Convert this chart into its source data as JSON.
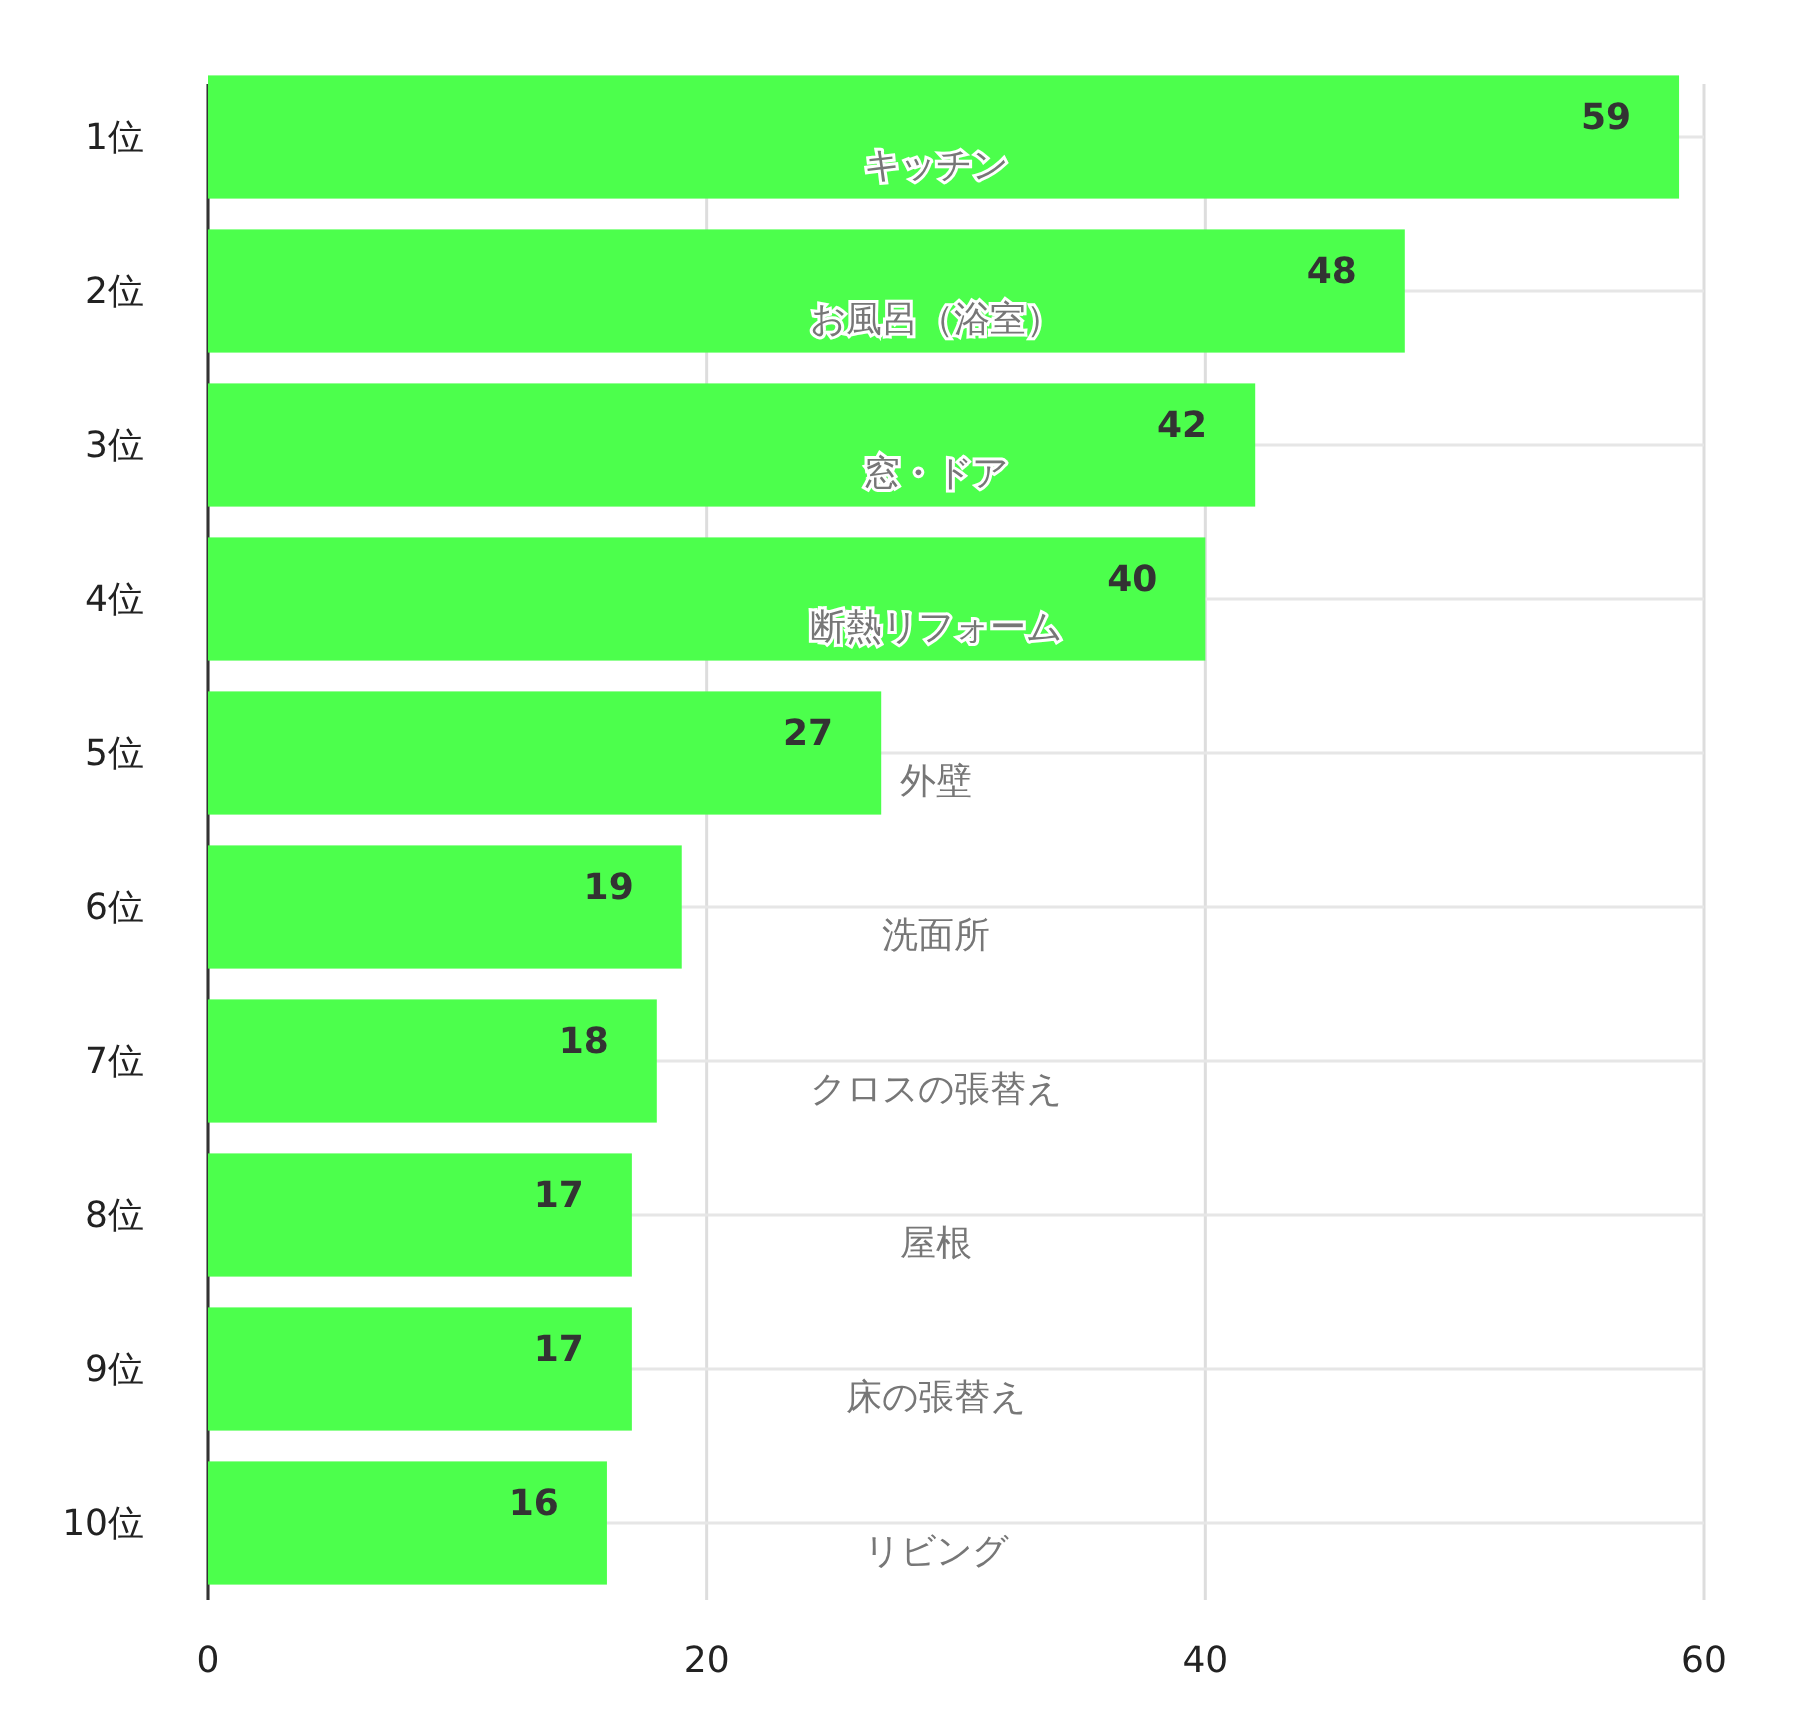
{
  "chart_data": {
    "type": "bar",
    "orientation": "horizontal",
    "categories": [
      "1位",
      "2位",
      "3位",
      "4位",
      "5位",
      "6位",
      "7位",
      "8位",
      "9位",
      "10位"
    ],
    "values": [
      59,
      48,
      42,
      40,
      27,
      19,
      18,
      17,
      17,
      16
    ],
    "color": "#4cff4c",
    "xlim": [
      0,
      60
    ],
    "xticks": [
      0,
      20,
      40,
      60
    ],
    "grid": true,
    "data_labels": true,
    "annotations": [
      "キッチン",
      "お風呂（浴室）",
      "窓・ドア",
      "断熱リフォーム",
      "外壁",
      "洗面所",
      "クロスの張替え",
      "屋根",
      "床の張替え",
      "リビング"
    ]
  }
}
